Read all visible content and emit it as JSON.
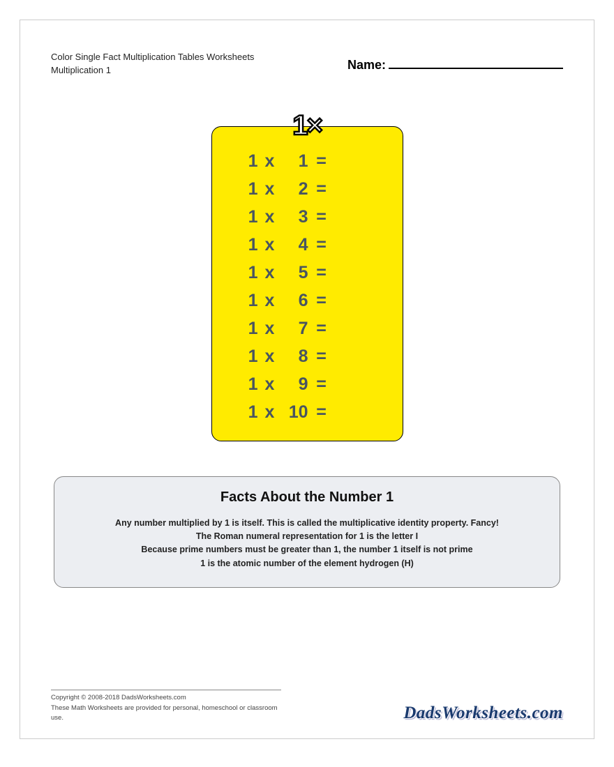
{
  "header": {
    "title_line1": "Color Single Fact Multiplication Tables Worksheets",
    "title_line2": "Multiplication 1",
    "name_label": "Name:"
  },
  "table": {
    "badge": "1×",
    "background_color": "#ffeb00",
    "text_color": "#495560",
    "operator": "x",
    "equals": "=",
    "rows": [
      {
        "a": "1",
        "b": "1"
      },
      {
        "a": "1",
        "b": "2"
      },
      {
        "a": "1",
        "b": "3"
      },
      {
        "a": "1",
        "b": "4"
      },
      {
        "a": "1",
        "b": "5"
      },
      {
        "a": "1",
        "b": "6"
      },
      {
        "a": "1",
        "b": "7"
      },
      {
        "a": "1",
        "b": "8"
      },
      {
        "a": "1",
        "b": "9"
      },
      {
        "a": "1",
        "b": "10"
      }
    ]
  },
  "facts": {
    "title": "Facts About the Number 1",
    "background_color": "#eceef2",
    "lines": [
      "Any number multiplied by 1 is itself. This is called the multiplicative identity property. Fancy!",
      "The Roman numeral representation for 1 is the letter I",
      "Because prime numbers must be greater than 1, the number 1 itself is not prime",
      "1 is the atomic number of the element hydrogen (H)"
    ]
  },
  "footer": {
    "copyright": "Copyright © 2008-2018 DadsWorksheets.com",
    "disclaimer": "These Math Worksheets are provided for personal, homeschool or classroom use.",
    "logo": "DadsWorksheets.com"
  }
}
